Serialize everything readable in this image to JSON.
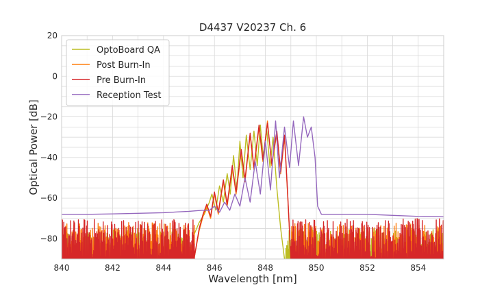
{
  "chart_data": {
    "type": "line",
    "title": "D4437 V20237 Ch. 6",
    "xlabel": "Wavelength [nm]",
    "ylabel": "Optical Power [dB]",
    "xlim": [
      840,
      855
    ],
    "ylim": [
      -90,
      20
    ],
    "xticks": [
      840,
      842,
      844,
      846,
      848,
      850,
      852,
      854
    ],
    "yticks": [
      -80,
      -60,
      -40,
      -20,
      0,
      20
    ],
    "xtick_labels": [
      "840",
      "842",
      "844",
      "846",
      "848",
      "850",
      "852",
      "854"
    ],
    "ytick_labels": [
      "−80",
      "−60",
      "−40",
      "−20",
      "0",
      "20"
    ],
    "grid": true,
    "legend_position": "top-left",
    "series": [
      {
        "name": "OptoBoard QA",
        "color": "#bcbd22",
        "noise_floor": [
          -90,
          -75
        ],
        "signal_range": [
          845.0,
          848.8
        ],
        "points": [
          [
            845.0,
            -90
          ],
          [
            845.2,
            -78
          ],
          [
            845.4,
            -72
          ],
          [
            845.6,
            -68
          ],
          [
            845.8,
            -62
          ],
          [
            845.9,
            -58
          ],
          [
            846.05,
            -66
          ],
          [
            846.2,
            -54
          ],
          [
            846.35,
            -62
          ],
          [
            846.5,
            -48
          ],
          [
            846.62,
            -58
          ],
          [
            846.75,
            -39
          ],
          [
            846.88,
            -56
          ],
          [
            847.0,
            -32
          ],
          [
            847.12,
            -50
          ],
          [
            847.25,
            -29
          ],
          [
            847.4,
            -46
          ],
          [
            847.55,
            -27
          ],
          [
            847.68,
            -44
          ],
          [
            847.8,
            -24
          ],
          [
            847.93,
            -42
          ],
          [
            848.05,
            -26
          ],
          [
            848.18,
            -45
          ],
          [
            848.3,
            -30
          ],
          [
            848.45,
            -55
          ],
          [
            848.6,
            -75
          ],
          [
            848.75,
            -90
          ]
        ]
      },
      {
        "name": "Post Burn-In",
        "color": "#ff7f0e",
        "noise_floor": [
          -90,
          -72
        ],
        "signal_range": [
          845.2,
          849.0
        ],
        "points": [
          [
            845.2,
            -90
          ],
          [
            845.4,
            -76
          ],
          [
            845.55,
            -69
          ],
          [
            845.7,
            -64
          ],
          [
            845.85,
            -70
          ],
          [
            846.0,
            -58
          ],
          [
            846.15,
            -68
          ],
          [
            846.35,
            -52
          ],
          [
            846.5,
            -64
          ],
          [
            846.7,
            -45
          ],
          [
            846.85,
            -58
          ],
          [
            847.05,
            -37
          ],
          [
            847.2,
            -52
          ],
          [
            847.4,
            -29
          ],
          [
            847.55,
            -46
          ],
          [
            847.75,
            -25
          ],
          [
            847.9,
            -42
          ],
          [
            848.08,
            -22
          ],
          [
            848.25,
            -44
          ],
          [
            848.45,
            -28
          ],
          [
            848.6,
            -48
          ],
          [
            848.75,
            -30
          ],
          [
            848.88,
            -60
          ],
          [
            849.0,
            -90
          ]
        ]
      },
      {
        "name": "Pre Burn-In",
        "color": "#d62728",
        "noise_floor": [
          -90,
          -70
        ],
        "signal_range": [
          845.2,
          849.0
        ],
        "points": [
          [
            845.2,
            -90
          ],
          [
            845.4,
            -75
          ],
          [
            845.55,
            -68
          ],
          [
            845.7,
            -63
          ],
          [
            845.85,
            -69
          ],
          [
            846.0,
            -57
          ],
          [
            846.15,
            -67
          ],
          [
            846.35,
            -51
          ],
          [
            846.5,
            -63
          ],
          [
            846.7,
            -44
          ],
          [
            846.85,
            -57
          ],
          [
            847.05,
            -36
          ],
          [
            847.2,
            -51
          ],
          [
            847.4,
            -28
          ],
          [
            847.55,
            -45
          ],
          [
            847.75,
            -24
          ],
          [
            847.9,
            -41
          ],
          [
            848.08,
            -23
          ],
          [
            848.25,
            -43
          ],
          [
            848.45,
            -27
          ],
          [
            848.6,
            -47
          ],
          [
            848.75,
            -29
          ],
          [
            848.88,
            -59
          ],
          [
            849.0,
            -90
          ]
        ]
      },
      {
        "name": "Reception Test",
        "color": "#9467bd",
        "points": [
          [
            840,
            -68
          ],
          [
            841,
            -68
          ],
          [
            842,
            -67.8
          ],
          [
            843,
            -67.5
          ],
          [
            844,
            -67.2
          ],
          [
            845,
            -66.5
          ],
          [
            845.5,
            -66
          ],
          [
            845.8,
            -66
          ],
          [
            846.0,
            -64
          ],
          [
            846.2,
            -67
          ],
          [
            846.4,
            -62
          ],
          [
            846.6,
            -66
          ],
          [
            846.8,
            -58
          ],
          [
            847.0,
            -64
          ],
          [
            847.2,
            -50
          ],
          [
            847.4,
            -62
          ],
          [
            847.6,
            -42
          ],
          [
            847.8,
            -58
          ],
          [
            848.0,
            -32
          ],
          [
            848.2,
            -56
          ],
          [
            848.4,
            -22
          ],
          [
            848.55,
            -50
          ],
          [
            848.75,
            -25
          ],
          [
            848.95,
            -45
          ],
          [
            849.1,
            -22
          ],
          [
            849.3,
            -44
          ],
          [
            849.5,
            -20
          ],
          [
            849.65,
            -30
          ],
          [
            849.8,
            -25
          ],
          [
            849.95,
            -40
          ],
          [
            850.05,
            -64
          ],
          [
            850.2,
            -68
          ],
          [
            851,
            -68
          ],
          [
            852,
            -68
          ],
          [
            853,
            -68.5
          ],
          [
            854,
            -69
          ],
          [
            855,
            -69.2
          ]
        ]
      }
    ]
  }
}
